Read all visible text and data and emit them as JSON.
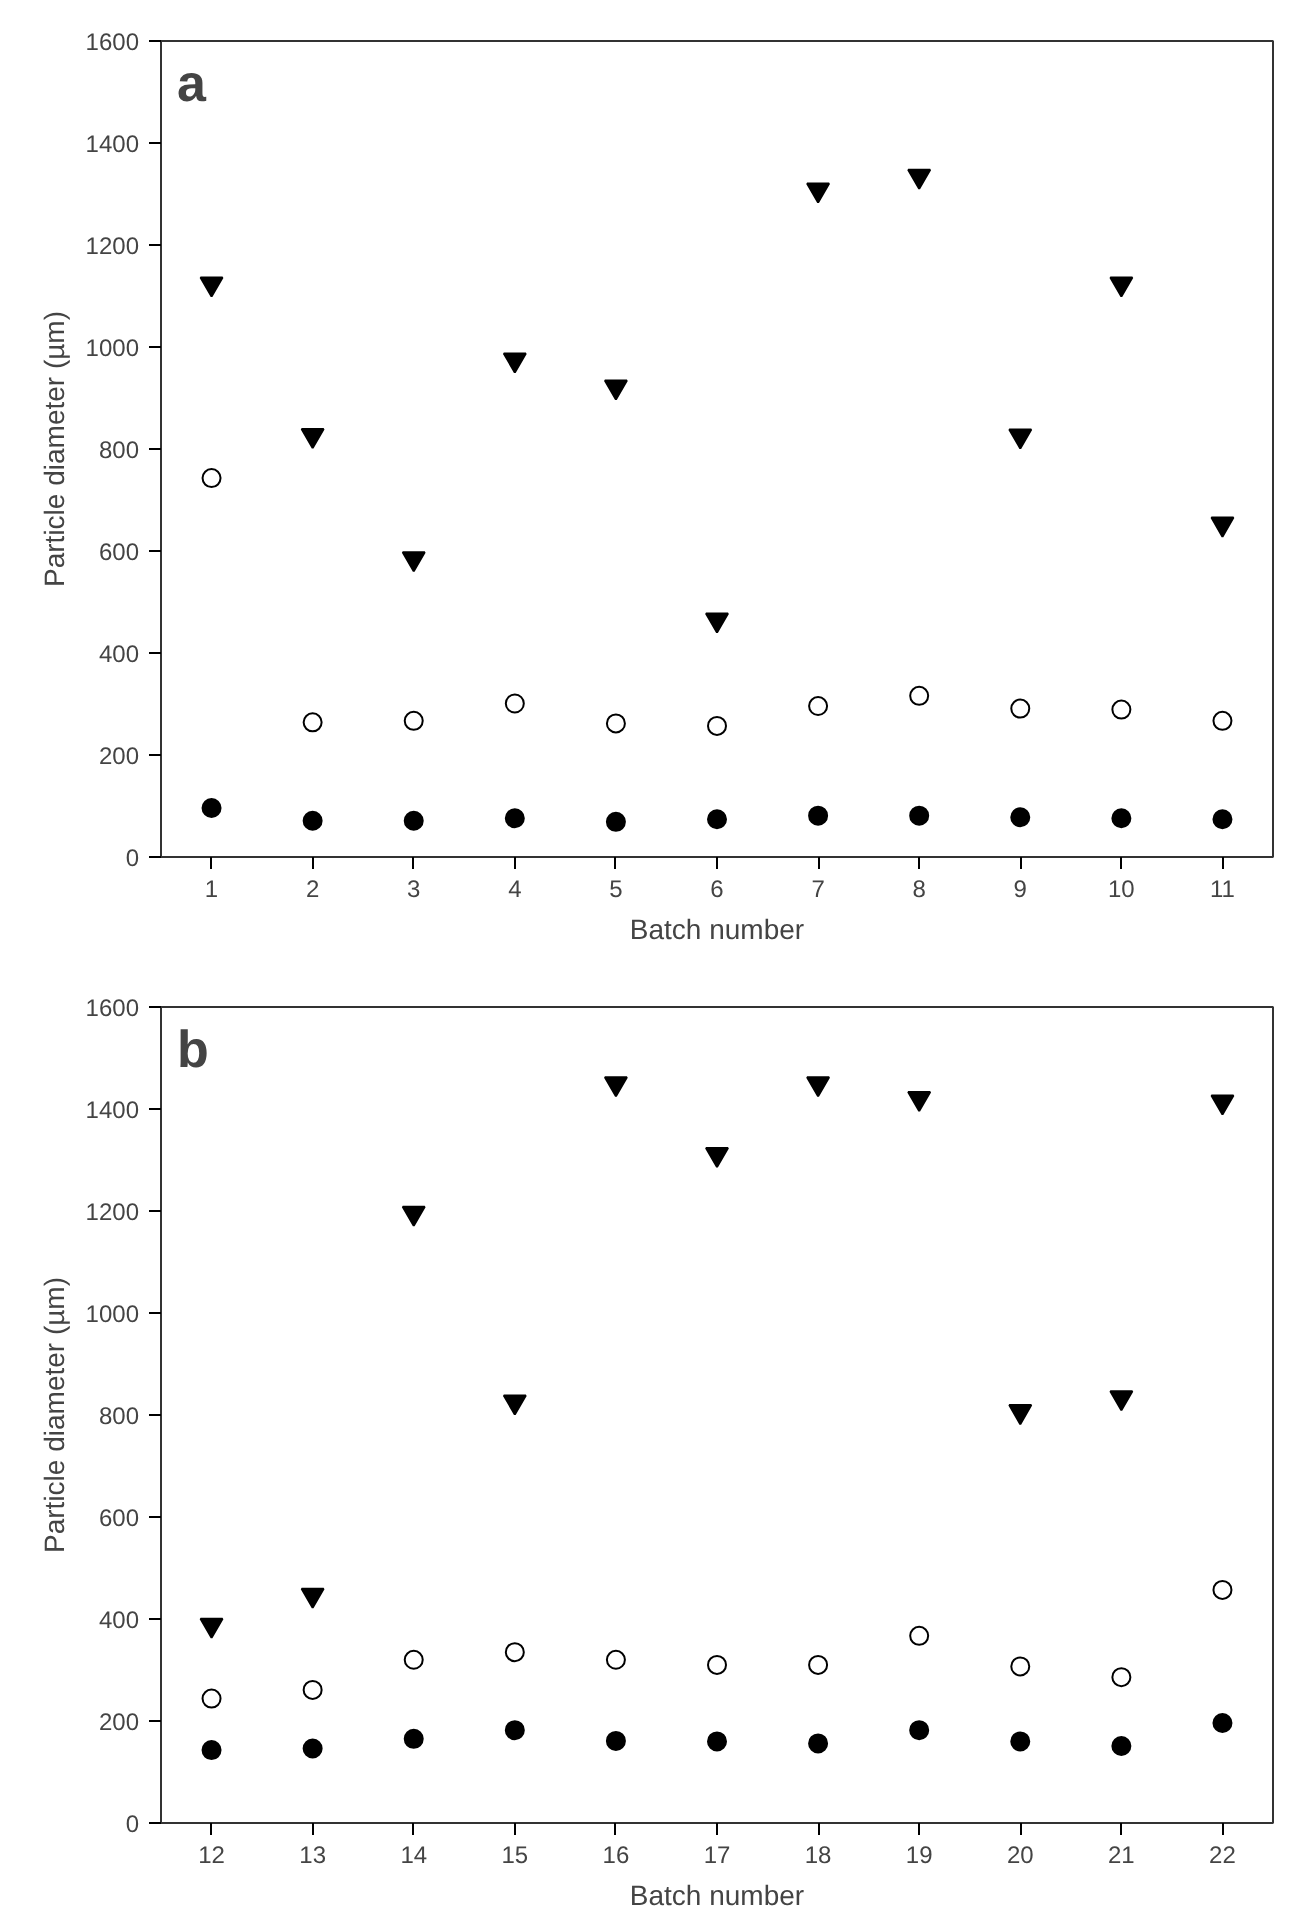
{
  "chart_data": [
    {
      "type": "scatter",
      "xlabel": "Batch number",
      "ylabel": "Particle diameter (µm)",
      "annotations": [
        "a"
      ],
      "x": [
        1,
        2,
        3,
        4,
        5,
        6,
        7,
        8,
        9,
        10,
        11
      ],
      "xlim": [
        0.5,
        11.5
      ],
      "xticks": [
        1,
        2,
        3,
        4,
        5,
        6,
        7,
        8,
        9,
        10,
        11
      ],
      "ylim": [
        0,
        1600
      ],
      "yticks": [
        0,
        200,
        400,
        600,
        800,
        1000,
        1200,
        1400,
        1600
      ],
      "grid": false,
      "series": [
        {
          "color": "#000000",
          "marker": "triangle",
          "values": [
            1124,
            827,
            585,
            975,
            922,
            465,
            1308,
            1335,
            826,
            1124,
            653
          ]
        },
        {
          "color": "#ffffff",
          "marker": "circle",
          "values": [
            743,
            264,
            267,
            301,
            262,
            257,
            296,
            316,
            291,
            289,
            267
          ]
        },
        {
          "color": "#000000",
          "marker": "circle",
          "values": [
            96,
            71,
            71,
            76,
            69,
            74,
            81,
            81,
            78,
            76,
            74
          ]
        }
      ]
    },
    {
      "type": "scatter",
      "xlabel": "Batch number",
      "ylabel": "Particle diameter (µm)",
      "annotations": [
        "b"
      ],
      "x": [
        12,
        13,
        14,
        15,
        16,
        17,
        18,
        19,
        20,
        21,
        22
      ],
      "xlim": [
        11.5,
        22.5
      ],
      "xticks": [
        12,
        13,
        14,
        15,
        16,
        17,
        18,
        19,
        20,
        21,
        22
      ],
      "ylim": [
        0,
        1600
      ],
      "yticks": [
        0,
        200,
        400,
        600,
        800,
        1000,
        1200,
        1400,
        1600
      ],
      "grid": false,
      "series": [
        {
          "color": "#000000",
          "marker": "triangle",
          "values": [
            388,
            447,
            1196,
            826,
            1450,
            1311,
            1450,
            1421,
            807,
            834,
            1414
          ]
        },
        {
          "color": "#ffffff",
          "marker": "circle",
          "values": [
            244,
            261,
            320,
            335,
            320,
            310,
            310,
            367,
            307,
            286,
            457
          ]
        },
        {
          "color": "#000000",
          "marker": "circle",
          "values": [
            143,
            146,
            165,
            182,
            161,
            160,
            156,
            182,
            160,
            151,
            196
          ]
        }
      ]
    }
  ]
}
